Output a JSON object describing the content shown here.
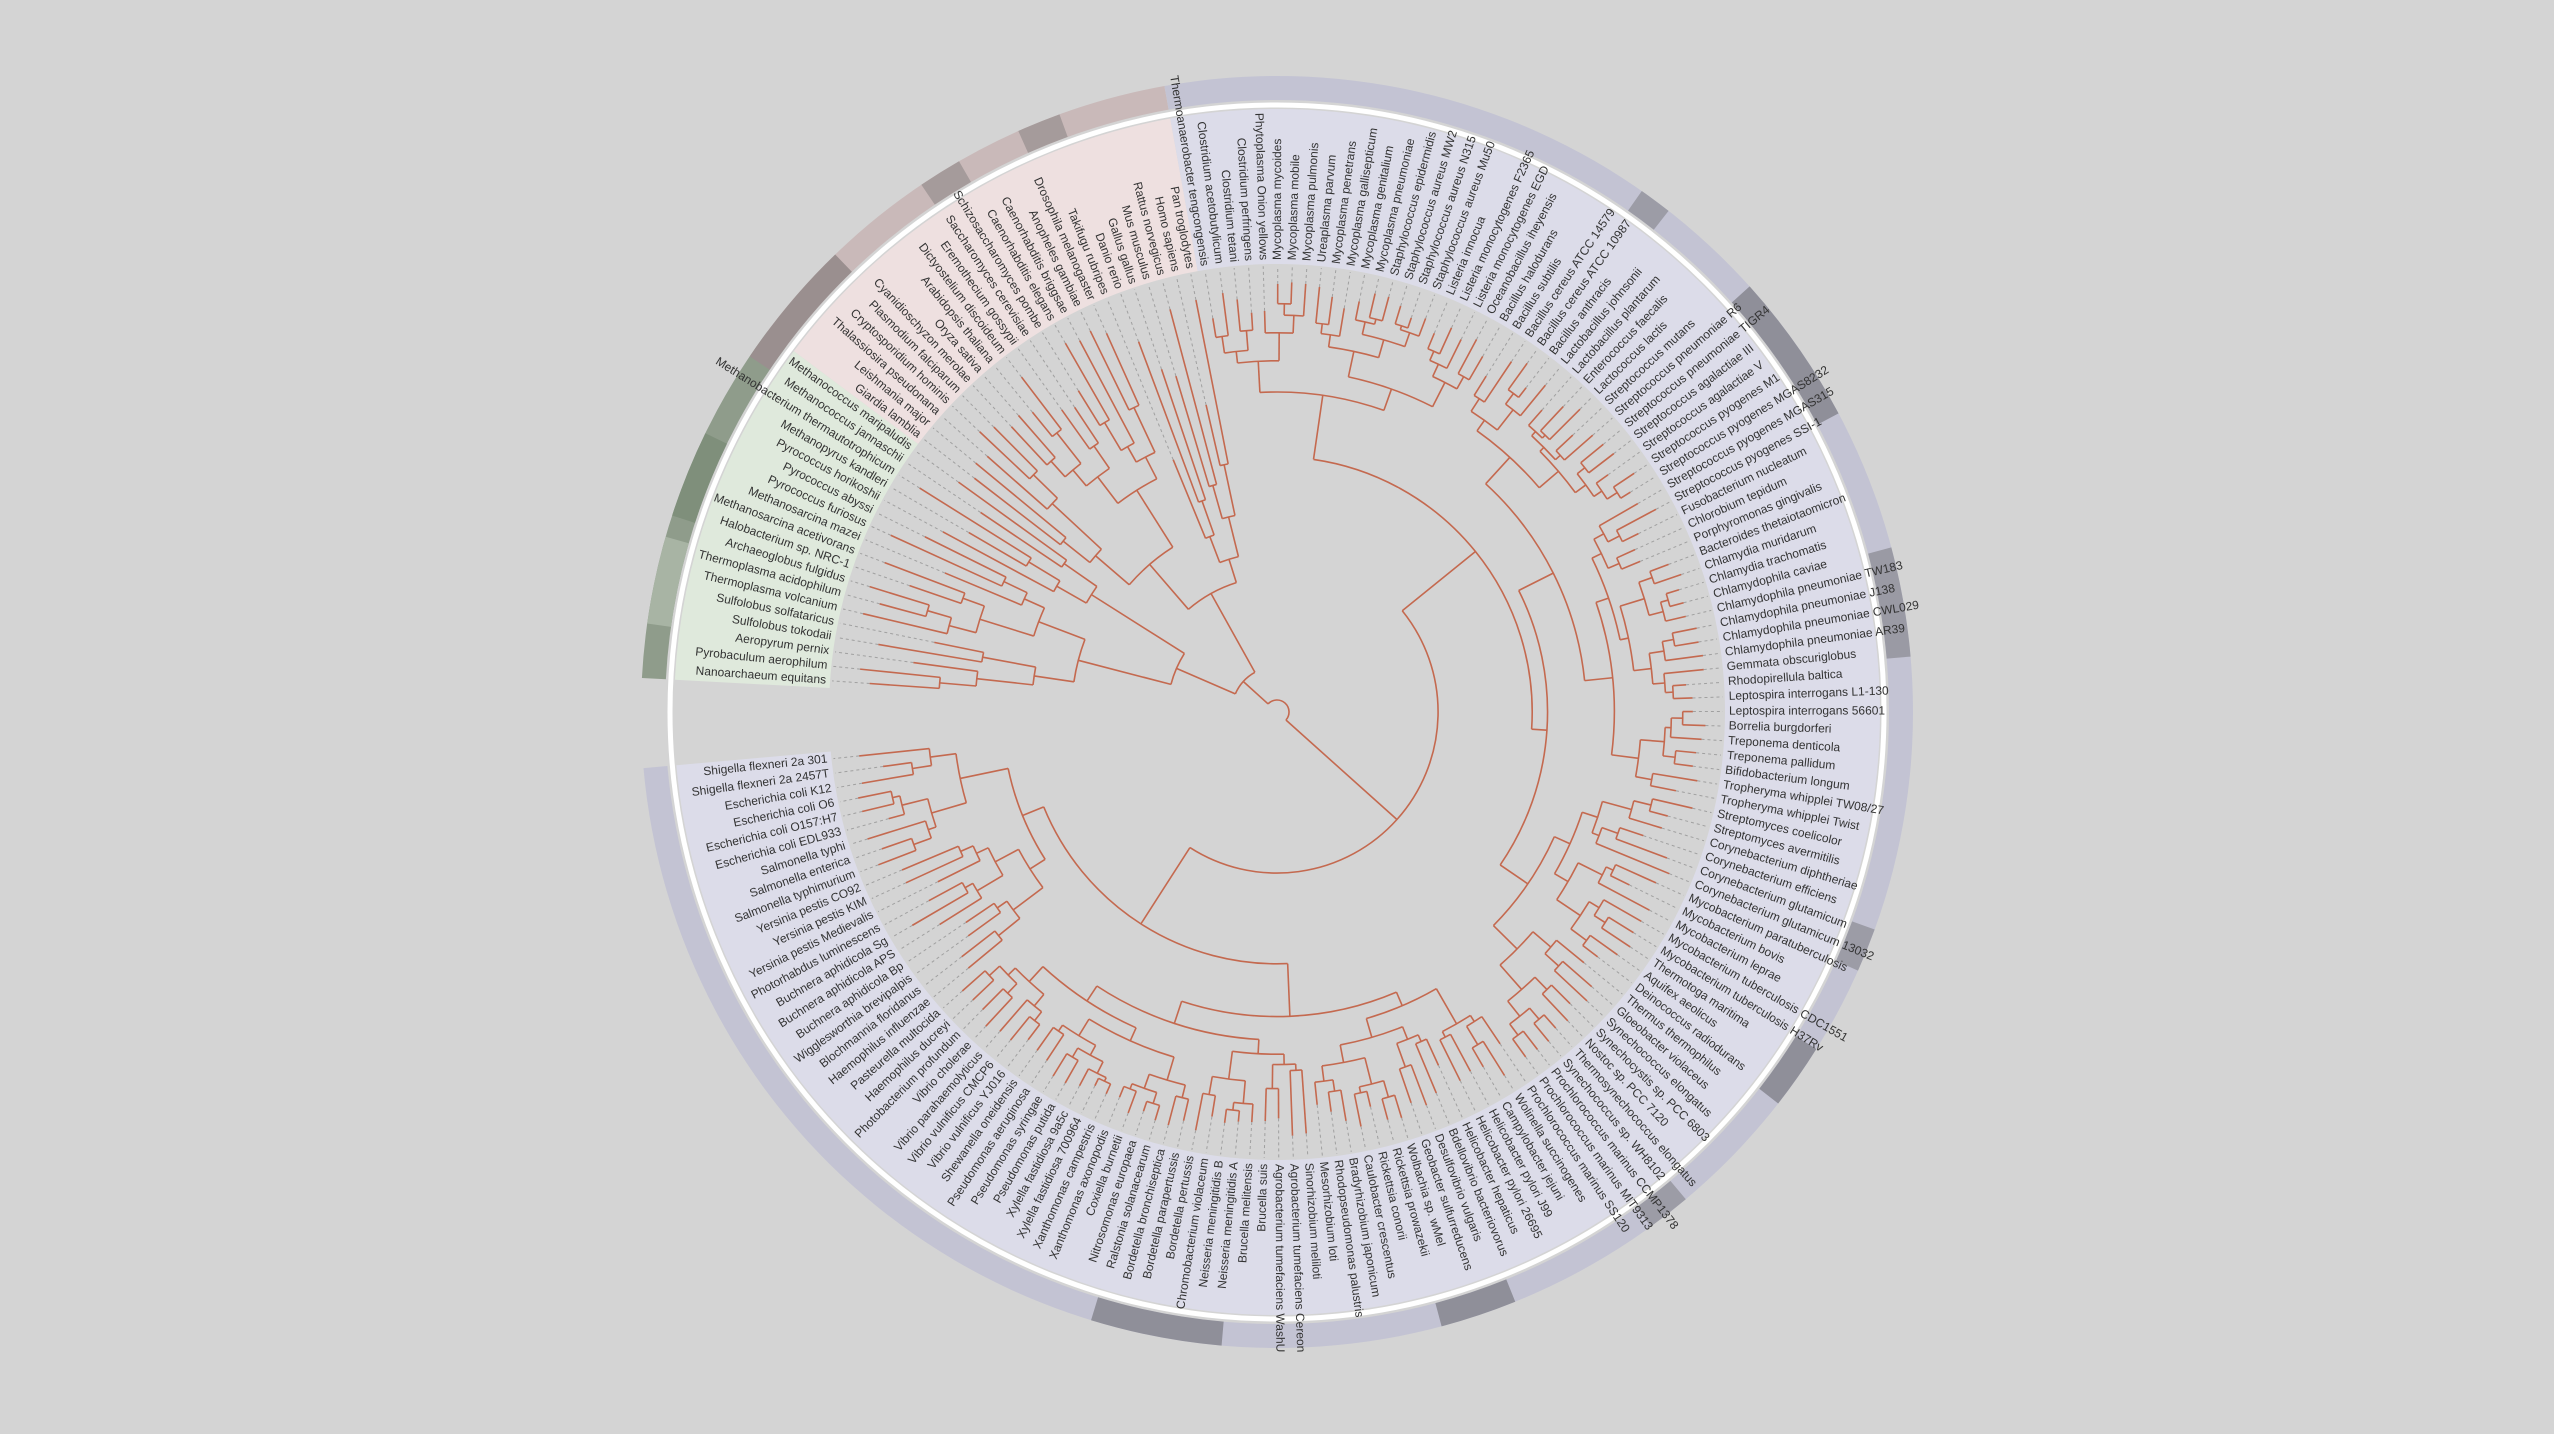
{
  "leaves": [
    "Nanoarchaeum equitans",
    "Pyrobaculum aerophilum",
    "Aeropyrum pernix",
    "Sulfolobus tokodaii",
    "Sulfolobus solfataricus",
    "Thermoplasma volcanium",
    "Thermoplasma acidophilum",
    "Archaeoglobus fulgidus",
    "Halobacterium sp. NRC-1",
    "Methanosarcina acetivorans",
    "Methanosarcina mazei",
    "Pyrococcus furiosus",
    "Pyrococcus abyssi",
    "Pyrococcus horikoshii",
    "Methanopyrus kandleri",
    "Methanobacterium thermautotrophicum",
    "Methanococcus jannaschii",
    "Methanococcus maripaludis",
    "Giardia lamblia",
    "Leishmania major",
    "Thalassiosira pseudonana",
    "Cryptosporidium hominis",
    "Plasmodium falciparum",
    "Cyanidioschyzon merolae",
    "Oryza sativa",
    "Arabidopsis thaliana",
    "Dictyostelium discoideum",
    "Eremothecium gossypii",
    "Saccharomyces cerevisiae",
    "Schizosaccharomyces pombe",
    "Caenorhabditis elegans",
    "Caenorhabditis briggsae",
    "Anopheles gambiae",
    "Drosophila melanogaster",
    "Takifugu rubripes",
    "Danio rerio",
    "Gallus gallus",
    "Mus musculus",
    "Rattus norvegicus",
    "Homo sapiens",
    "Pan troglodytes",
    "Thermoanaerobacter tengcongensis",
    "Clostridium acetobutylicum",
    "Clostridium tetani",
    "Clostridium perfringens",
    "Phytoplasma Onion yellows",
    "Mycoplasma mycoides",
    "Mycoplasma mobile",
    "Mycoplasma pulmonis",
    "Ureaplasma parvum",
    "Mycoplasma penetrans",
    "Mycoplasma gallisepticum",
    "Mycoplasma genitalium",
    "Mycoplasma pneumoniae",
    "Staphylococcus epidermidis",
    "Staphylococcus aureus MW2",
    "Staphylococcus aureus N315",
    "Staphylococcus aureus Mu50",
    "Listeria innocua",
    "Listeria monocytogenes F2365",
    "Listeria monocytogenes EGD",
    "Oceanobacillus iheyensis",
    "Bacillus halodurans",
    "Bacillus subtilis",
    "Bacillus cereus ATCC 14579",
    "Bacillus cereus ATCC 10987",
    "Bacillus anthracis",
    "Lactobacillus johnsonii",
    "Lactobacillus plantarum",
    "Enterococcus faecalis",
    "Lactococcus lactis",
    "Streptococcus mutans",
    "Streptococcus pneumoniae R6",
    "Streptococcus pneumoniae TIGR4",
    "Streptococcus agalactiae III",
    "Streptococcus agalactiae V",
    "Streptococcus pyogenes M1",
    "Streptococcus pyogenes MGAS8232",
    "Streptococcus pyogenes MGAS315",
    "Streptococcus pyogenes SSI-1",
    "Fusobacterium nucleatum",
    "Chlorobium tepidum",
    "Porphyromonas gingivalis",
    "Bacteroides thetaiotaomicron",
    "Chlamydia muridarum",
    "Chlamydia trachomatis",
    "Chlamydophila caviae",
    "Chlamydophila pneumoniae TW183",
    "Chlamydophila pneumoniae J138",
    "Chlamydophila pneumoniae CWL029",
    "Chlamydophila pneumoniae AR39",
    "Gemmata obscuriglobus",
    "Rhodopirellula baltica",
    "Leptospira interrogans L1-130",
    "Leptospira interrogans 56601",
    "Borrelia burgdorferi",
    "Treponema denticola",
    "Treponema pallidum",
    "Bifidobacterium longum",
    "Tropheryma whipplei TW08/27",
    "Tropheryma whipplei Twist",
    "Streptomyces coelicolor",
    "Streptomyces avermitilis",
    "Corynebacterium diphtheriae",
    "Corynebacterium efficiens",
    "Corynebacterium glutamicum",
    "Corynebacterium glutamicum 13032",
    "Mycobacterium paratuberculosis",
    "Mycobacterium bovis",
    "Mycobacterium leprae",
    "Mycobacterium tuberculosis CDC1551",
    "Mycobacterium tuberculosis H37Rv",
    "Thermotoga maritima",
    "Aquifex aeolicus",
    "Deinococcus radiodurans",
    "Thermus thermophilus",
    "Gloeobacter violaceus",
    "Synechococcus elongatus",
    "Synechocystis sp. PCC 6803",
    "Nostoc sp. PCC 7120",
    "Thermosynechococcus elongatus",
    "Synechococcus sp. WH8102",
    "Prochlorococcus marinus CCMP1378",
    "Prochlorococcus marinus MIT9313",
    "Prochlorococcus marinus SS120",
    "Wolinella succinogenes",
    "Campylobacter jejuni",
    "Helicobacter pylori J99",
    "Helicobacter pylori 26695",
    "Helicobacter hepaticus",
    "Bdellovibrio bacteriovorus",
    "Desulfovibrio vulgaris",
    "Geobacter sulfurreducens",
    "Wolbachia sp. wMel",
    "Rickettsia prowazekii",
    "Rickettsia conorii",
    "Caulobacter crescentus",
    "Bradyrhizobium japonicum",
    "Rhodopseudomonas palustris",
    "Mesorhizobium loti",
    "Sinorhizobium meliloti",
    "Agrobacterium tumefaciens Cereon",
    "Agrobacterium tumefaciens WashU",
    "Brucella suis",
    "Brucella melitensis",
    "Neisseria meningitidis A",
    "Neisseria meningitidis B",
    "Chromobacterium violaceum",
    "Bordetella pertussis",
    "Bordetella parapertussis",
    "Bordetella bronchiseptica",
    "Ralstonia solanacearum",
    "Nitrosomonas europaea",
    "Coxiella burnetii",
    "Xanthomonas axonopodis",
    "Xanthomonas campestris",
    "Xylella fastidiosa 700964",
    "Xylella fastidiosa 9a5c",
    "Pseudomonas putida",
    "Pseudomonas syringae",
    "Pseudomonas aeruginosa",
    "Shewanella oneidensis",
    "Vibrio vulnificus YJ016",
    "Vibrio vulnificus CMCP6",
    "Vibrio parahaemolyticus",
    "Vibrio cholerae",
    "Photobacterium profundum",
    "Haemophilus ducreyi",
    "Pasteurella multocida",
    "Haemophilus influenzae",
    "Blochmannia floridanus",
    "Wigglesworthia brevipalpis",
    "Buchnera aphidicola Bp",
    "Buchnera aphidicola APS",
    "Buchnera aphidicola Sg",
    "Photorhabdus luminescens",
    "Yersinia pestis Medievalis",
    "Yersinia pestis KIM",
    "Yersinia pestis CO92",
    "Salmonella typhimurium",
    "Salmonella enterica",
    "Salmonella typhi",
    "Escherichia coli EDL933",
    "Escherichia coli O157:H7",
    "Escherichia coli O6",
    "Escherichia coli K12",
    "Shigella flexneri 2a 2457T",
    "Shigella flexneri 2a 301"
  ]
}
